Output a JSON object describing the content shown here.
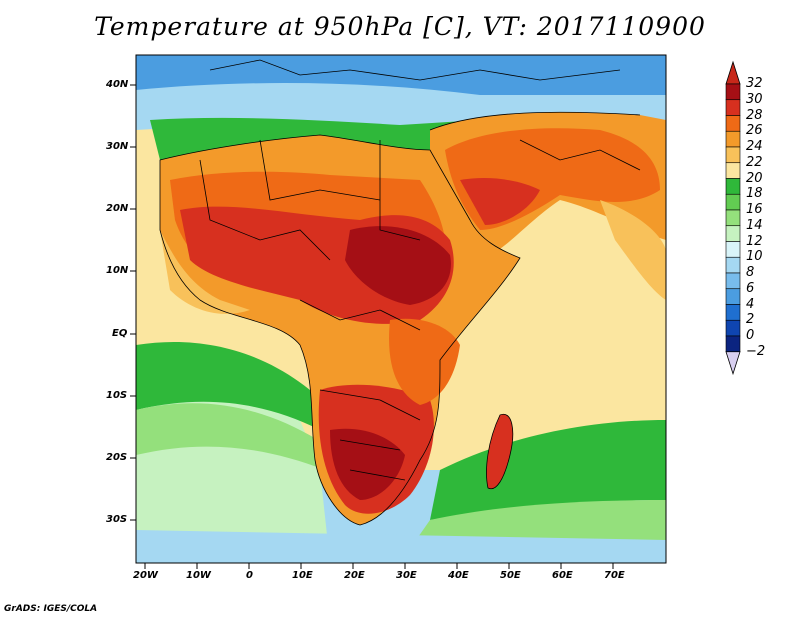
{
  "title": "Temperature at 950hPa [C], VT: 2017110900",
  "credit": "GrADS: IGES/COLA",
  "lat_labels": [
    "40N",
    "30N",
    "20N",
    "10N",
    "EQ",
    "10S",
    "20S",
    "30S"
  ],
  "lon_labels": [
    "20W",
    "10W",
    "0",
    "10E",
    "20E",
    "30E",
    "40E",
    "50E",
    "60E",
    "70E"
  ],
  "colorbar": {
    "levels": [
      "32",
      "30",
      "28",
      "26",
      "24",
      "22",
      "20",
      "18",
      "16",
      "14",
      "12",
      "10",
      "8",
      "6",
      "4",
      "2",
      "0",
      "−2"
    ],
    "colors": [
      "#a50f15",
      "#d7301f",
      "#ef6a16",
      "#f39a2a",
      "#f8c15a",
      "#fbe6a0",
      "#2fb83a",
      "#62cc52",
      "#94e07c",
      "#c6f2c0",
      "#d9f4f9",
      "#a5d8f2",
      "#78bcec",
      "#4b9de0",
      "#1f6fd0",
      "#0f45b0",
      "#0b2480"
    ],
    "top_arrow_color": "#c8281a",
    "bottom_arrow_color": "#d8cff0"
  },
  "map_colors": {
    "ocean_cold": "#a5d8f2",
    "ocean_cool": "#c6f2c0",
    "ocean_mild": "#94e07c",
    "ocean_green": "#2fb83a",
    "ocean_warm": "#fbe6a0",
    "land_warm": "#f8c15a",
    "land_hot": "#ef6a16",
    "land_very_hot": "#d7301f",
    "land_extreme": "#a50f15",
    "europe": "#4b9de0"
  }
}
